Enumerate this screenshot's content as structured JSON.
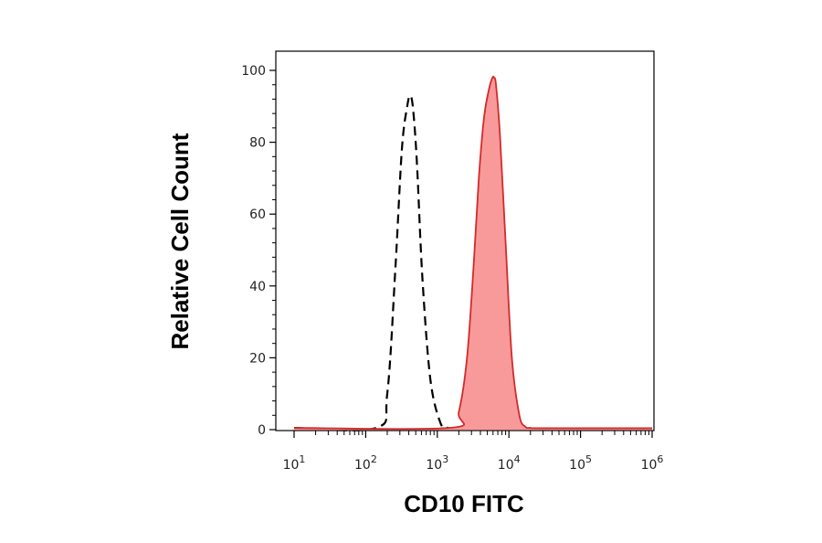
{
  "chart_data": {
    "type": "area",
    "title": "",
    "xlabel": "CD10 FITC",
    "ylabel": "Relative Cell Count",
    "x_scale": "log",
    "xlim": [
      10,
      1000000
    ],
    "ylim": [
      0,
      100
    ],
    "x_tick_labels": [
      {
        "value": 10,
        "base": "10",
        "exp": "1"
      },
      {
        "value": 100,
        "base": "10",
        "exp": "2"
      },
      {
        "value": 1000,
        "base": "10",
        "exp": "3"
      },
      {
        "value": 10000,
        "base": "10",
        "exp": "4"
      },
      {
        "value": 100000,
        "base": "10",
        "exp": "5"
      },
      {
        "value": 1000000,
        "base": "10",
        "exp": "6"
      }
    ],
    "y_ticks": [
      0,
      20,
      40,
      60,
      80,
      100
    ],
    "y_tick_labels": [
      "0",
      "20",
      "40",
      "60",
      "80",
      "100"
    ],
    "grid": false,
    "legend": "none",
    "series": [
      {
        "style": "dashed-line",
        "color": "#000000",
        "peak_x": 420,
        "peak_y": 93,
        "x": [
          10,
          140,
          200,
          260,
          320,
          380,
          420,
          460,
          520,
          620,
          800,
          1100,
          1400,
          2000,
          1000000
        ],
        "y": [
          0.5,
          0.5,
          10,
          45,
          78,
          90,
          93,
          89,
          74,
          42,
          14,
          2,
          0.5,
          0.3,
          0.3
        ]
      },
      {
        "style": "filled-area",
        "color": "#d42a2a",
        "fill": "#f89a9a",
        "peak_x": 6200,
        "peak_y": 98,
        "x": [
          10,
          1500,
          2000,
          2600,
          3200,
          3800,
          4500,
          5300,
          5900,
          6200,
          6600,
          7500,
          9000,
          11000,
          14000,
          17000,
          20000,
          30000,
          1000000
        ],
        "y": [
          0.5,
          0.5,
          5,
          20,
          45,
          70,
          87,
          95,
          98,
          98,
          96,
          82,
          52,
          20,
          4,
          0.8,
          0.5,
          0.4,
          0.4
        ]
      }
    ]
  }
}
